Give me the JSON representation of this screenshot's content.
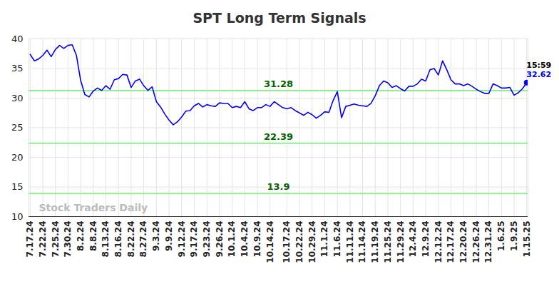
{
  "chart_data": {
    "type": "line",
    "title": "SPT Long Term Signals",
    "watermark": "Stock Traders Daily",
    "annotation": "15:59",
    "color": "#0000ff",
    "grid": true,
    "ylim": [
      10,
      40
    ],
    "yticks": [
      10,
      15,
      20,
      25,
      30,
      35,
      40
    ],
    "levels": [
      31.28,
      22.39,
      13.9
    ],
    "categories": [
      "7.17.24",
      null,
      null,
      "7.22.24",
      null,
      null,
      "7.25.24",
      null,
      null,
      "7.30.24",
      null,
      null,
      "8.2.24",
      null,
      null,
      "8.8.24",
      null,
      null,
      "8.13.24",
      null,
      null,
      "8.16.24",
      null,
      null,
      "8.22.24",
      null,
      null,
      "8.27.24",
      null,
      null,
      "9.3.24",
      null,
      null,
      "9.9.24",
      null,
      null,
      "9.12.24",
      null,
      null,
      "9.17.24",
      null,
      null,
      "9.23.24",
      null,
      null,
      "9.26.24",
      null,
      null,
      "10.1.24",
      null,
      null,
      "10.4.24",
      null,
      null,
      "10.9.24",
      null,
      null,
      "10.14.24",
      null,
      null,
      null,
      "10.17.24",
      null,
      null,
      "10.22.24",
      null,
      null,
      "10.29.24",
      null,
      null,
      "11.1.24",
      null,
      null,
      "11.6.24",
      null,
      null,
      "11.11.24",
      null,
      null,
      "11.14.24",
      null,
      null,
      "11.19.24",
      null,
      null,
      "11.25.24",
      null,
      null,
      "11.29.24",
      null,
      null,
      "12.4.24",
      null,
      null,
      "12.9.24",
      null,
      null,
      "12.12.24",
      null,
      null,
      "12.17.24",
      null,
      null,
      "12.20.24",
      null,
      null,
      "12.26.24",
      null,
      null,
      "12.31.24",
      null,
      null,
      "1.6.25",
      null,
      null,
      "1.9.25",
      null,
      null,
      "1.15.25"
    ],
    "values": [
      37.4,
      36.3,
      36.6,
      37.2,
      38.1,
      37.0,
      38.2,
      38.9,
      38.4,
      38.9,
      39.0,
      37.2,
      33.0,
      30.6,
      30.2,
      31.2,
      31.7,
      31.3,
      32.1,
      31.5,
      33.1,
      33.3,
      34.0,
      33.9,
      31.8,
      32.9,
      33.2,
      32.1,
      31.3,
      31.9,
      29.4,
      28.5,
      27.3,
      26.3,
      25.5,
      26.0,
      26.8,
      27.8,
      27.9,
      28.7,
      29.1,
      28.5,
      28.9,
      28.7,
      28.6,
      29.2,
      29.1,
      29.1,
      28.4,
      28.6,
      28.4,
      29.4,
      28.2,
      27.9,
      28.4,
      28.4,
      28.9,
      28.6,
      29.4,
      28.9,
      28.4,
      28.2,
      28.4,
      27.9,
      27.5,
      27.1,
      27.6,
      27.2,
      26.6,
      27.1,
      27.7,
      27.6,
      29.6,
      31.1,
      26.7,
      28.6,
      28.8,
      29.0,
      28.8,
      28.7,
      28.6,
      29.1,
      30.4,
      32.1,
      32.9,
      32.6,
      31.8,
      32.1,
      31.6,
      31.2,
      32.0,
      32.0,
      32.4,
      33.2,
      32.9,
      34.8,
      35.0,
      33.9,
      36.3,
      34.8,
      33.1,
      32.4,
      32.4,
      32.1,
      32.4,
      32.0,
      31.5,
      31.1,
      30.8,
      30.8,
      32.4,
      32.1,
      31.7,
      31.7,
      31.8,
      30.5,
      30.9,
      31.6,
      32.62
    ]
  }
}
